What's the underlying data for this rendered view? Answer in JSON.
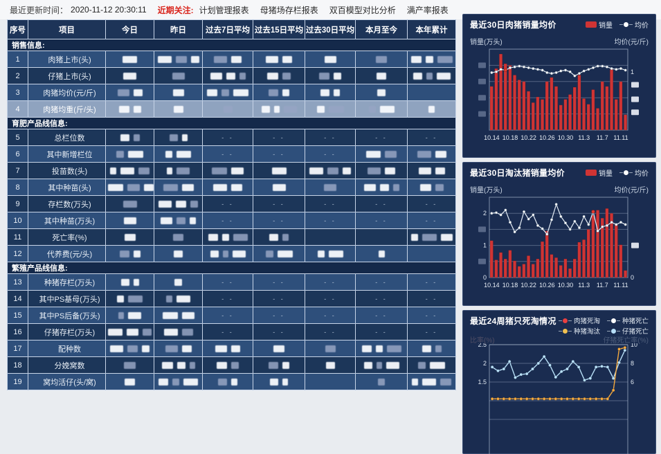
{
  "topbar": {
    "updated_label": "最近更新时间：",
    "updated_time": "2020-11-12 20:30:11",
    "focus_label": "近期关注:",
    "links": [
      "计划管理报表",
      "母猪场存栏报表",
      "双百模型对比分析",
      "满产率报表"
    ]
  },
  "colors": {
    "focus_red": "#d9251c",
    "bar_red": "#cf3434",
    "price_line": "#e6eef6",
    "cull_orange": "#f5a93e",
    "piglet_blue": "#b8e0f8",
    "panel_bg": "#1a2c50",
    "row_highlight": "#8fa3bf"
  },
  "table": {
    "headers": [
      "序号",
      "项目",
      "今日",
      "昨日",
      "过去7日平均",
      "过去15日平均",
      "过去30日平均",
      "本月至今",
      "本年累计"
    ],
    "rows": [
      {
        "type": "section",
        "label": "销售信息:"
      },
      {
        "type": "data",
        "no": "1",
        "item": "肉猪上市(头)",
        "cells": [
          "b",
          "b",
          "b",
          "b",
          "b",
          "b",
          "b"
        ]
      },
      {
        "type": "data",
        "no": "2",
        "item": "仔猪上市(头)",
        "cells": [
          "b",
          "b",
          "b",
          "b",
          "b",
          "b",
          "b"
        ]
      },
      {
        "type": "data",
        "no": "3",
        "item": "肉猪均价(元/斤)",
        "cells": [
          "b",
          "b",
          "b",
          "b",
          "b",
          "b",
          ""
        ]
      },
      {
        "type": "data",
        "no": "4",
        "item": "肉猪均重(斤/头)",
        "highlight": true,
        "cells": [
          "b",
          "b",
          "b",
          "b",
          "b",
          "b",
          "b"
        ]
      },
      {
        "type": "section",
        "label": "育肥产品线信息:"
      },
      {
        "type": "data",
        "no": "5",
        "item": "总栏位数",
        "cells": [
          "b",
          "b",
          "-",
          "-",
          "-",
          "-",
          "-"
        ]
      },
      {
        "type": "data",
        "no": "6",
        "item": "其中新增栏位",
        "cells": [
          "b",
          "b",
          "-",
          "-",
          "-",
          "b",
          "b"
        ]
      },
      {
        "type": "data",
        "no": "7",
        "item": "投苗数(头)",
        "cells": [
          "b",
          "b",
          "b",
          "b",
          "b",
          "b",
          "b"
        ]
      },
      {
        "type": "data",
        "no": "8",
        "item": "其中种苗(头)",
        "cells": [
          "b",
          "b",
          "b",
          "b",
          "b",
          "b",
          "b"
        ]
      },
      {
        "type": "data",
        "no": "9",
        "item": "存栏数(万头)",
        "cells": [
          "b",
          "b",
          "-",
          "-",
          "-",
          "-",
          "-"
        ]
      },
      {
        "type": "data",
        "no": "10",
        "item": "其中种苗(万头)",
        "cells": [
          "b",
          "b",
          "-",
          "-",
          "-",
          "-",
          "-"
        ]
      },
      {
        "type": "data",
        "no": "11",
        "item": "死亡率(%)",
        "cells": [
          "b",
          "b",
          "b",
          "b",
          "",
          "",
          "b"
        ]
      },
      {
        "type": "data",
        "no": "12",
        "item": "代养费(元/头)",
        "cells": [
          "b",
          "b",
          "b",
          "b",
          "b",
          "b",
          ""
        ]
      },
      {
        "type": "section",
        "label": "繁殖产品线信息:"
      },
      {
        "type": "data",
        "no": "13",
        "item": "种猪存栏(万头)",
        "cells": [
          "b",
          "b",
          "-",
          "-",
          "-",
          "-",
          "-"
        ]
      },
      {
        "type": "data",
        "no": "14",
        "item": "其中PS基母(万头)",
        "cells": [
          "b",
          "b",
          "-",
          "-",
          "-",
          "-",
          "-"
        ]
      },
      {
        "type": "data",
        "no": "15",
        "item": "其中PS后备(万头)",
        "cells": [
          "b",
          "b",
          "-",
          "-",
          "-",
          "-",
          "-"
        ]
      },
      {
        "type": "data",
        "no": "16",
        "item": "仔猪存栏(万头)",
        "cells": [
          "b",
          "b",
          "-",
          "-",
          "-",
          "-",
          "-"
        ]
      },
      {
        "type": "data",
        "no": "17",
        "item": "配种数",
        "cells": [
          "b",
          "b",
          "b",
          "b",
          "b",
          "b",
          "b"
        ]
      },
      {
        "type": "data",
        "no": "18",
        "item": "分娩窝数",
        "cells": [
          "b",
          "b",
          "b",
          "b",
          "b",
          "b",
          "b"
        ]
      },
      {
        "type": "data",
        "no": "19",
        "item": "窝均活仔(头/窝)",
        "cells": [
          "b",
          "b",
          "b",
          "b",
          "",
          "b",
          "b"
        ]
      }
    ]
  },
  "chart_data": [
    {
      "type": "bar+line",
      "title": "最近30日肉猪销量均价",
      "legend": [
        {
          "label": "销量",
          "type": "bar",
          "color": "#cf3434"
        },
        {
          "label": "均价",
          "type": "line",
          "color": "#ffffff"
        }
      ],
      "left_axis_label": "销量(万头)",
      "right_axis_label": "均价(元/斤)",
      "x_labels": [
        "10.14",
        "10.18",
        "10.22",
        "10.26",
        "10.30",
        "11.3",
        "11.7",
        "11.11"
      ],
      "ylim": [
        0,
        5
      ],
      "bars": [
        2.7,
        3.8,
        4.7,
        4.1,
        4.0,
        3.4,
        3.1,
        3.0,
        2.4,
        1.7,
        2.05,
        1.9,
        3.0,
        3.25,
        2.7,
        1.55,
        1.9,
        2.2,
        2.65,
        3.4,
        1.95,
        1.6,
        2.5,
        1.35,
        3.0,
        2.7,
        3.75,
        1.9,
        3.0,
        0.95
      ],
      "line": [
        3.55,
        3.6,
        3.75,
        3.7,
        3.85,
        3.9,
        3.95,
        3.9,
        3.85,
        3.8,
        3.75,
        3.7,
        3.55,
        3.5,
        3.55,
        3.65,
        3.7,
        3.6,
        3.35,
        3.5,
        3.65,
        3.75,
        3.85,
        3.95,
        3.95,
        3.9,
        3.8,
        3.75,
        3.8,
        3.7
      ],
      "highlight_index": 3,
      "left_ticks": [
        {
          "v": 1
        },
        {
          "v": 2
        },
        {
          "v": 3
        },
        {
          "v": 4
        }
      ],
      "right_ticks": [
        {
          "v": 3.6,
          "t": "1"
        },
        {
          "v": 2.8
        },
        {
          "v": 1.9
        },
        {
          "v": 1.1
        }
      ],
      "ticks_note": "axis tick values mostly redacted in source"
    },
    {
      "type": "bar+line",
      "title": "最近30日淘汰猪销量均价",
      "legend": [
        {
          "label": "销量",
          "type": "bar",
          "color": "#cf3434"
        },
        {
          "label": "均价",
          "type": "line",
          "color": "#ffffff"
        }
      ],
      "left_axis_label": "销量(万头)",
      "right_axis_label": "均价(元/斤)",
      "x_labels": [
        "10.14",
        "10.18",
        "10.22",
        "10.26",
        "10.30",
        "11.3",
        "11.7",
        "11.11"
      ],
      "ylim": [
        0,
        2.5
      ],
      "bars": [
        1.15,
        0.55,
        0.78,
        0.58,
        0.85,
        0.52,
        0.35,
        0.42,
        0.68,
        0.42,
        0.58,
        1.12,
        1.45,
        0.72,
        0.62,
        0.38,
        0.58,
        0.28,
        0.58,
        1.1,
        1.18,
        1.5,
        1.95,
        2.1,
        1.85,
        2.15,
        2.0,
        1.65,
        1.02,
        0.22
      ],
      "line": [
        2.0,
        2.02,
        1.95,
        2.1,
        1.72,
        1.42,
        1.55,
        2.05,
        1.82,
        1.95,
        1.62,
        1.52,
        1.35,
        1.8,
        2.28,
        1.9,
        1.7,
        1.5,
        1.75,
        1.55,
        1.9,
        1.65,
        2.05,
        1.45,
        1.58,
        1.62,
        1.72,
        1.65,
        1.72,
        1.65
      ],
      "highlight_index": 22,
      "left_ticks": [
        {
          "v": 2,
          "t": "2"
        },
        {
          "v": 1.5
        },
        {
          "v": 1,
          "t": "1"
        },
        {
          "v": 0.5
        },
        {
          "v": 0,
          "t": "0"
        }
      ],
      "right_ticks": [
        {
          "v": 1.0
        },
        {
          "v": 0,
          "t": "0"
        }
      ]
    },
    {
      "type": "line",
      "title": "最近24周猪只死淘情况",
      "legend": [
        {
          "label": "肉猪死淘",
          "type": "line",
          "color": "#e84040"
        },
        {
          "label": "种猪死亡",
          "type": "line",
          "color": "#ffffff"
        },
        {
          "label": "种猪淘汰",
          "type": "line",
          "color": "#f0c050"
        },
        {
          "label": "仔猪死亡",
          "type": "line",
          "color": "#b8e0f8"
        }
      ],
      "left_axis_label": "比率(%)",
      "right_axis_label": "仔猪死亡率(%)",
      "axis_labels_redacted": true,
      "ylim_left_visible": [
        1.5,
        2.5
      ],
      "right_ticks_values": [
        10,
        8,
        6
      ],
      "left_ticks": [
        {
          "v": 2.5,
          "t": "2.5"
        },
        {
          "v": 2,
          "t": "2"
        },
        {
          "v": 1.5,
          "t": "1.5"
        }
      ],
      "right_ticks": [
        {
          "v": 2.5,
          "t": "10"
        },
        {
          "v": 2,
          "t": "8"
        },
        {
          "v": 1.5,
          "t": "6"
        }
      ],
      "series": [
        {
          "name": "仔猪死亡",
          "color": "#b8e0f8",
          "values": [
            1.9,
            1.8,
            1.85,
            2.05,
            1.62,
            1.7,
            1.72,
            1.85,
            2.0,
            2.18,
            1.95,
            1.63,
            1.78,
            1.85,
            2.05,
            1.9,
            1.55,
            1.6,
            1.9,
            1.92,
            1.9,
            1.6,
            2.02,
            2.35
          ]
        },
        {
          "name": "种猪淘汰",
          "color": "#f5a93e",
          "values": [
            1.05,
            1.05,
            1.05,
            1.05,
            1.05,
            1.05,
            1.05,
            1.05,
            1.05,
            1.05,
            1.05,
            1.05,
            1.05,
            1.05,
            1.05,
            1.05,
            1.05,
            1.05,
            1.05,
            1.05,
            1.05,
            1.28,
            2.38,
            2.42
          ]
        }
      ]
    }
  ]
}
